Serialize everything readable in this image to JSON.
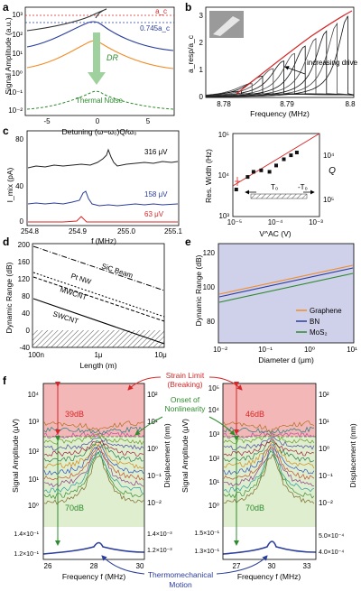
{
  "panels": {
    "a": {
      "label": "a",
      "ylabel": "Signal Amplitude (a.u.)",
      "xlabel": "Detuning (ω−ω₀)Q/ω₀",
      "yticks": [
        "10³",
        "10²",
        "10¹",
        "10⁰",
        "10⁻¹",
        "10⁻²"
      ],
      "xticks": [
        "-5",
        "0",
        "5"
      ],
      "ac_label": "a_c",
      "ac2_label": "0.745a_c",
      "dr_label": "DR",
      "noise_label": "Thermal Noise"
    },
    "b": {
      "label": "b",
      "ylabel": "a_resp/a_c",
      "xlabel": "Frequency (MHz)",
      "yticks": [
        "0",
        "1",
        "2",
        "3"
      ],
      "xticks": [
        "8.78",
        "8.79",
        "8.8"
      ],
      "annotation": "increasing drive"
    },
    "c_left": {
      "label": "c",
      "ylabel": "I_mix (pA)",
      "xlabel": "f (MHz)",
      "yticks": [
        "80",
        "40",
        "0"
      ],
      "xticks": [
        "254.8",
        "254.9",
        "255.0",
        "255.1"
      ],
      "traces": [
        "316 μV",
        "158 μV",
        "63 μV"
      ]
    },
    "c_right": {
      "ylabel": "Res. Width (Hz)",
      "xlabel": "V^AC (V)",
      "yticks": [
        "10⁵",
        "10⁴",
        "10³"
      ],
      "xticks": [
        "10⁻⁵",
        "10⁻⁴",
        "10⁻³"
      ],
      "y2label": "Q",
      "y2ticks": [
        "10⁴",
        "10⁵"
      ],
      "t0_label": "T₀",
      "neg_t0_label": "-T₀"
    },
    "d": {
      "label": "d",
      "ylabel": "Dynamic Range (dB)",
      "xlabel": "Length (m)",
      "yticks": [
        "200",
        "160",
        "120",
        "80",
        "40",
        "0",
        "-40"
      ],
      "xticks": [
        "100n",
        "1μ",
        "10μ"
      ],
      "lines": [
        "SiC Beam",
        "Pt NW",
        "MWCNT",
        "SWCNT"
      ]
    },
    "e": {
      "label": "e",
      "ylabel": "Dynamic Range (dB)",
      "xlabel": "Diameter d (μm)",
      "yticks": [
        "80",
        "100",
        "120"
      ],
      "xticks": [
        "10⁻²",
        "10⁻¹",
        "10⁰",
        "10¹"
      ],
      "legend": [
        "Graphene",
        "BN",
        "MoS₂"
      ]
    },
    "f": {
      "label": "f",
      "strain_limit": "Strain Limit",
      "breaking": "(Breaking)",
      "onset1": "Onset of",
      "onset2": "Nonlinearity",
      "thermo1": "Thermomechanical",
      "thermo2": "Motion",
      "left": {
        "ylabel": "Signal Amplitude (μV)",
        "y2label": "Displacement (nm)",
        "xlabel": "Frequency f (MHz)",
        "yticks": [
          "10⁴",
          "10³",
          "10²",
          "10¹",
          "10⁰",
          "1.4×10⁻¹",
          "1.2×10⁻¹"
        ],
        "y2ticks": [
          "10²",
          "10¹",
          "10⁰",
          "10⁻¹",
          "10⁻²",
          "1.4×10⁻³",
          "1.2×10⁻³"
        ],
        "xticks": [
          "26",
          "28",
          "30"
        ],
        "db_top": "39dB",
        "db_bottom": "70dB"
      },
      "right": {
        "ylabel": "Signal Amplitude (μV)",
        "y2label": "Displacement (nm)",
        "xlabel": "Frequency f (MHz)",
        "yticks": [
          "10⁵",
          "10⁴",
          "10³",
          "10²",
          "10¹",
          "10⁰",
          "1.5×10⁻¹",
          "1.3×10⁻¹"
        ],
        "y2ticks": [
          "10²",
          "10¹",
          "10⁰",
          "10⁻¹",
          "10⁻²",
          "5.0×10⁻⁴",
          "4.0×10⁻⁴"
        ],
        "xticks": [
          "27",
          "30",
          "33"
        ],
        "db_top": "46dB",
        "db_bottom": "70dB"
      }
    }
  },
  "colors": {
    "red": "#d62728",
    "blue": "#2a3d9c",
    "green": "#2e8b2e",
    "orange": "#f28c28",
    "pink_band": "#f3b7b7",
    "green_band": "#dfeecf",
    "lavender": "#cfd0ea"
  },
  "chart_data": [
    {
      "panel": "a",
      "type": "line",
      "x_range": [
        -7,
        7
      ],
      "y_log": true,
      "y_range": [
        0.006,
        2000
      ],
      "series": [
        {
          "x": [
            -7,
            -4,
            -2,
            0,
            1,
            1.5,
            2.3
          ],
          "y": [
            45,
            80,
            160,
            320,
            520,
            720,
            1000
          ]
        },
        {
          "x": [
            -7,
            -3,
            -1,
            0,
            1,
            3,
            7
          ],
          "y": [
            10,
            40,
            130,
            180,
            110,
            30,
            9
          ]
        },
        {
          "x": [
            -7,
            -3,
            -1,
            0,
            1,
            3,
            7
          ],
          "y": [
            1.2,
            4,
            20,
            35,
            18,
            4,
            1.2
          ]
        },
        {
          "x": [
            -7,
            -3,
            -1,
            0,
            1,
            3,
            7
          ],
          "y": [
            0.012,
            0.025,
            0.07,
            0.15,
            0.07,
            0.025,
            0.012
          ]
        }
      ]
    },
    {
      "panel": "b",
      "type": "line",
      "x_range": [
        8.775,
        8.8
      ],
      "y_range": [
        0,
        3.6
      ],
      "backbone": {
        "x": [
          8.781,
          8.784,
          8.787,
          8.79,
          8.793,
          8.796,
          8.799
        ],
        "y": [
          0.2,
          0.8,
          1.4,
          1.9,
          2.4,
          2.85,
          3.3
        ]
      }
    },
    {
      "panel": "c_left",
      "type": "line",
      "x_range": [
        254.8,
        255.1
      ],
      "y_range": [
        0,
        90
      ],
      "series": [
        {
          "name": "316 μV",
          "x": [
            254.8,
            254.9,
            254.95,
            254.96,
            254.98,
            255.1
          ],
          "y": [
            60,
            63,
            72,
            82,
            62,
            66
          ]
        },
        {
          "name": "158 μV",
          "x": [
            254.8,
            254.89,
            254.9,
            254.92,
            255.1
          ],
          "y": [
            20,
            22,
            38,
            23,
            20
          ]
        },
        {
          "name": "63 μV",
          "x": [
            254.8,
            254.89,
            254.9,
            254.91,
            255.1
          ],
          "y": [
            3,
            3,
            10,
            4,
            3
          ]
        }
      ]
    },
    {
      "panel": "c_right",
      "type": "scatter",
      "x_log": true,
      "y_log": true,
      "x_range": [
        1e-05,
        0.001
      ],
      "y_range": [
        1000,
        100000
      ],
      "x": [
        1.2e-05,
        2.2e-05,
        3e-05,
        4.5e-05,
        7e-05,
        0.0001,
        0.00015,
        0.00022,
        0.0003
      ],
      "y": [
        4500,
        9000,
        12000,
        13000,
        12000,
        17000,
        24000,
        30000,
        35000
      ]
    },
    {
      "panel": "d",
      "type": "line",
      "x_log": true,
      "x_range": [
        1e-07,
        1e-05
      ],
      "y_range": [
        -40,
        200
      ],
      "series": [
        {
          "name": "SiC Beam",
          "x": [
            1e-07,
            1e-05
          ],
          "y": [
            192,
            88
          ]
        },
        {
          "name": "Pt NW",
          "x": [
            1e-07,
            1e-05
          ],
          "y": [
            132,
            30
          ]
        },
        {
          "name": "MWCNT",
          "x": [
            1e-07,
            1e-05
          ],
          "y": [
            122,
            20
          ]
        },
        {
          "name": "SWCNT",
          "x": [
            1e-07,
            1e-05
          ],
          "y": [
            72,
            -32
          ]
        }
      ]
    },
    {
      "panel": "e",
      "type": "line",
      "x_log": true,
      "x_range": [
        0.01,
        10
      ],
      "y_range": [
        60,
        140
      ],
      "series": [
        {
          "name": "Graphene",
          "x": [
            0.01,
            10
          ],
          "y": [
            83,
            113
          ]
        },
        {
          "name": "BN",
          "x": [
            0.01,
            10
          ],
          "y": [
            81,
            111
          ]
        },
        {
          "name": "MoS₂",
          "x": [
            0.01,
            10
          ],
          "y": [
            77,
            107
          ]
        }
      ]
    },
    {
      "panel": "f",
      "type": "line",
      "left_x_range": [
        26,
        31
      ],
      "right_x_range": [
        26,
        34
      ],
      "left_peak_mhz": 28.3,
      "right_peak_mhz": 29.5
    }
  ]
}
